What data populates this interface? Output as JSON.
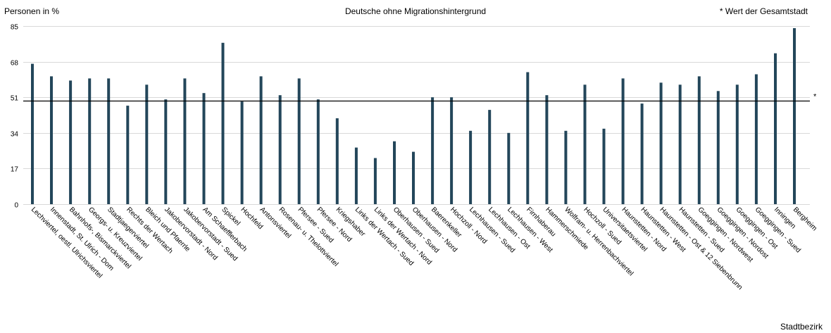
{
  "chart_data": {
    "type": "bar",
    "title": "Deutsche ohne Migrationshintergrund",
    "ylabel": "Personen in %",
    "xlabel": "Stadtbezirk",
    "reference_note": "* Wert der Gesamtstadt",
    "reference_marker": "*",
    "reference_value": 49.5,
    "ylim": [
      0,
      85
    ],
    "yticks": [
      0,
      17,
      34,
      51,
      68,
      85
    ],
    "grid": true,
    "bar_color": "#23465a",
    "categories": [
      "Lechviertel, oestl. Ulrichsviertel",
      "Innenstadt, St. Ulrich - Dom",
      "Bahnhofs-, Bismarckviertel",
      "Georgs- u. Kreuzviertel",
      "Stadtjaegerviertel",
      "Rechts der Wertach",
      "Bleich und Pfaerrle",
      "Jakobervorstadt - Nord",
      "Jakobervorstadt - Sued",
      "Am Schaefflerbach",
      "Spickel",
      "Hochfeld",
      "Antonsviertel",
      "Rosenau- u. Thelottviertel",
      "Pfersee - Sued",
      "Pfersee - Nord",
      "Kriegshaber",
      "Links der Wertach - Sued",
      "Links der Wertach - Nord",
      "Oberhausen - Sued",
      "Oberhausen - Nord",
      "Baerenkeller",
      "Hochzoll - Nord",
      "Lechhausen - Sued",
      "Lechhausen - Ost",
      "Lechhausen - West",
      "Firnhaberau",
      "Hammerschmiede",
      "Wolfram- u. Herrenbachviertel",
      "Hochzoll - Sued",
      "Universitaetsviertel",
      "Haunstetten - Nord",
      "Haunstetten - West",
      "Haunstetten - Ost & 12 Siebenbrunn",
      "Haunstetten - Sued",
      "Goeggingen - Nordwest",
      "Goeggingen - Nordost",
      "Goeggingen - Ost",
      "Goeggingen - Sued",
      "Inningen",
      "Bergheim"
    ],
    "values": [
      67,
      61,
      59,
      60,
      60,
      47,
      57,
      50,
      60,
      53,
      77,
      49,
      61,
      52,
      60,
      50,
      41,
      27,
      22,
      30,
      25,
      51,
      51,
      35,
      45,
      34,
      63,
      52,
      35,
      57,
      36,
      60,
      48,
      58,
      57,
      61,
      54,
      57,
      62,
      72,
      84
    ]
  }
}
